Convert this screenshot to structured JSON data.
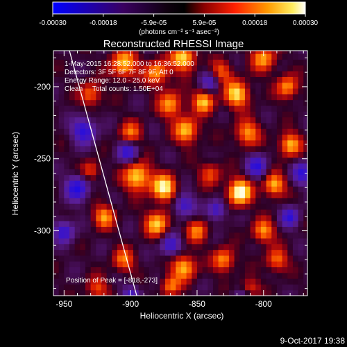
{
  "colorbar": {
    "ticks": [
      "-0.00030",
      "-0.00018",
      "-5.9e-05",
      "5.9e-05",
      "0.00018",
      "0.00030"
    ],
    "units": "(photons cm⁻² s⁻¹ asec⁻²)",
    "range": [
      -0.0003,
      0.0003
    ]
  },
  "chart_data": {
    "type": "heatmap",
    "title": "Reconstructed RHESSI Image",
    "xlabel": "Heliocentric X (arcsec)",
    "ylabel": "Heliocentric Y (arcsec)",
    "xlim": [
      -958,
      -767
    ],
    "ylim": [
      -345,
      -175
    ],
    "xticks": [
      -950,
      -900,
      -850,
      -800
    ],
    "yticks": [
      -200,
      -250,
      -300
    ],
    "grid": false,
    "colormap": "black-purple-blue-red-orange-yellow-white (RHESSI 'hot' style)",
    "annotations": [
      "1-May-2015 16:28:52.000 to 16:36:52.000",
      "Detectors: 3F 5F 6F 7F 8F 9F, Att 0",
      "Energy Range: 12.0 - 25.0 keV",
      "Clean     Total counts: 1.50E+04",
      "Position of Peak = [-818,-273]"
    ],
    "limb": "white solar limb line from upper-left to lower-center",
    "peak": [
      -818,
      -273
    ]
  },
  "footer": {
    "timestamp": "9-Oct-2017 19:38"
  }
}
